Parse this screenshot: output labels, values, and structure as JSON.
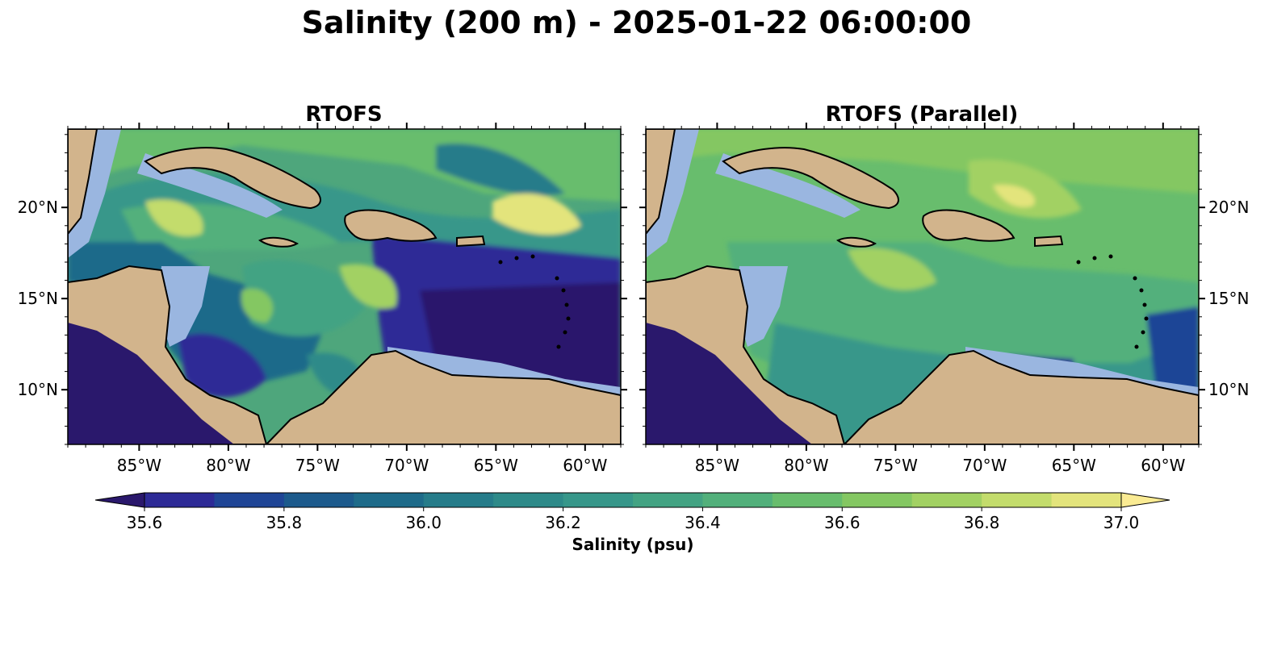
{
  "figure": {
    "title": "Salinity (200 m) - 2025-01-22 06:00:00"
  },
  "panels": [
    {
      "title": "RTOFS",
      "lat_labels_side": "left"
    },
    {
      "title": "RTOFS (Parallel)",
      "lat_labels_side": "right"
    }
  ],
  "chart_data": {
    "type": "heatmap",
    "variable": "Salinity",
    "depth": "200 m",
    "time": "2025-01-22 06:00:00",
    "lon_range": [
      -89.0,
      -58.0
    ],
    "lat_range": [
      7.0,
      24.3
    ],
    "x_ticks": [
      -85,
      -80,
      -75,
      -70,
      -65,
      -60
    ],
    "x_tick_labels": [
      "85°W",
      "80°W",
      "75°W",
      "70°W",
      "65°W",
      "60°W"
    ],
    "y_ticks": [
      10,
      15,
      20
    ],
    "y_tick_labels": [
      "10°N",
      "15°N",
      "20°N"
    ],
    "colorbar": {
      "label": "Salinity (psu)",
      "min": 35.6,
      "max": 37.0,
      "levels": [
        35.6,
        35.7,
        35.8,
        35.9,
        36.0,
        36.1,
        36.2,
        36.3,
        36.4,
        36.5,
        36.6,
        36.7,
        36.8,
        36.9,
        37.0
      ],
      "tick_values": [
        35.6,
        35.8,
        36.0,
        36.2,
        36.4,
        36.6,
        36.8,
        37.0
      ],
      "tick_labels": [
        "35.6",
        "35.8",
        "36.0",
        "36.2",
        "36.4",
        "36.6",
        "36.8",
        "37.0"
      ],
      "extend": "both",
      "colors": [
        "#2a186c",
        "#2d2a96",
        "#1f4596",
        "#1c5a8c",
        "#1e6b8a",
        "#267c8a",
        "#2e8a89",
        "#37978a",
        "#43a383",
        "#52b07b",
        "#68bd6d",
        "#84c762",
        "#a2d163",
        "#c3dc6c",
        "#e3e47c",
        "#faeb93"
      ]
    },
    "land_color": "#d2b48c",
    "shelf_color": "#9ab6e0",
    "series": [
      {
        "name": "RTOFS",
        "character": "wide range, strong eddies; low salinity (~35.6 psu) in SE Caribbean, higher (~36.8-37.0 psu) to the north"
      },
      {
        "name": "RTOFS (Parallel)",
        "character": "smoother field dominated by ~36.5-36.8 psu; low salinity only near Orinoco outflow in SE"
      }
    ]
  }
}
